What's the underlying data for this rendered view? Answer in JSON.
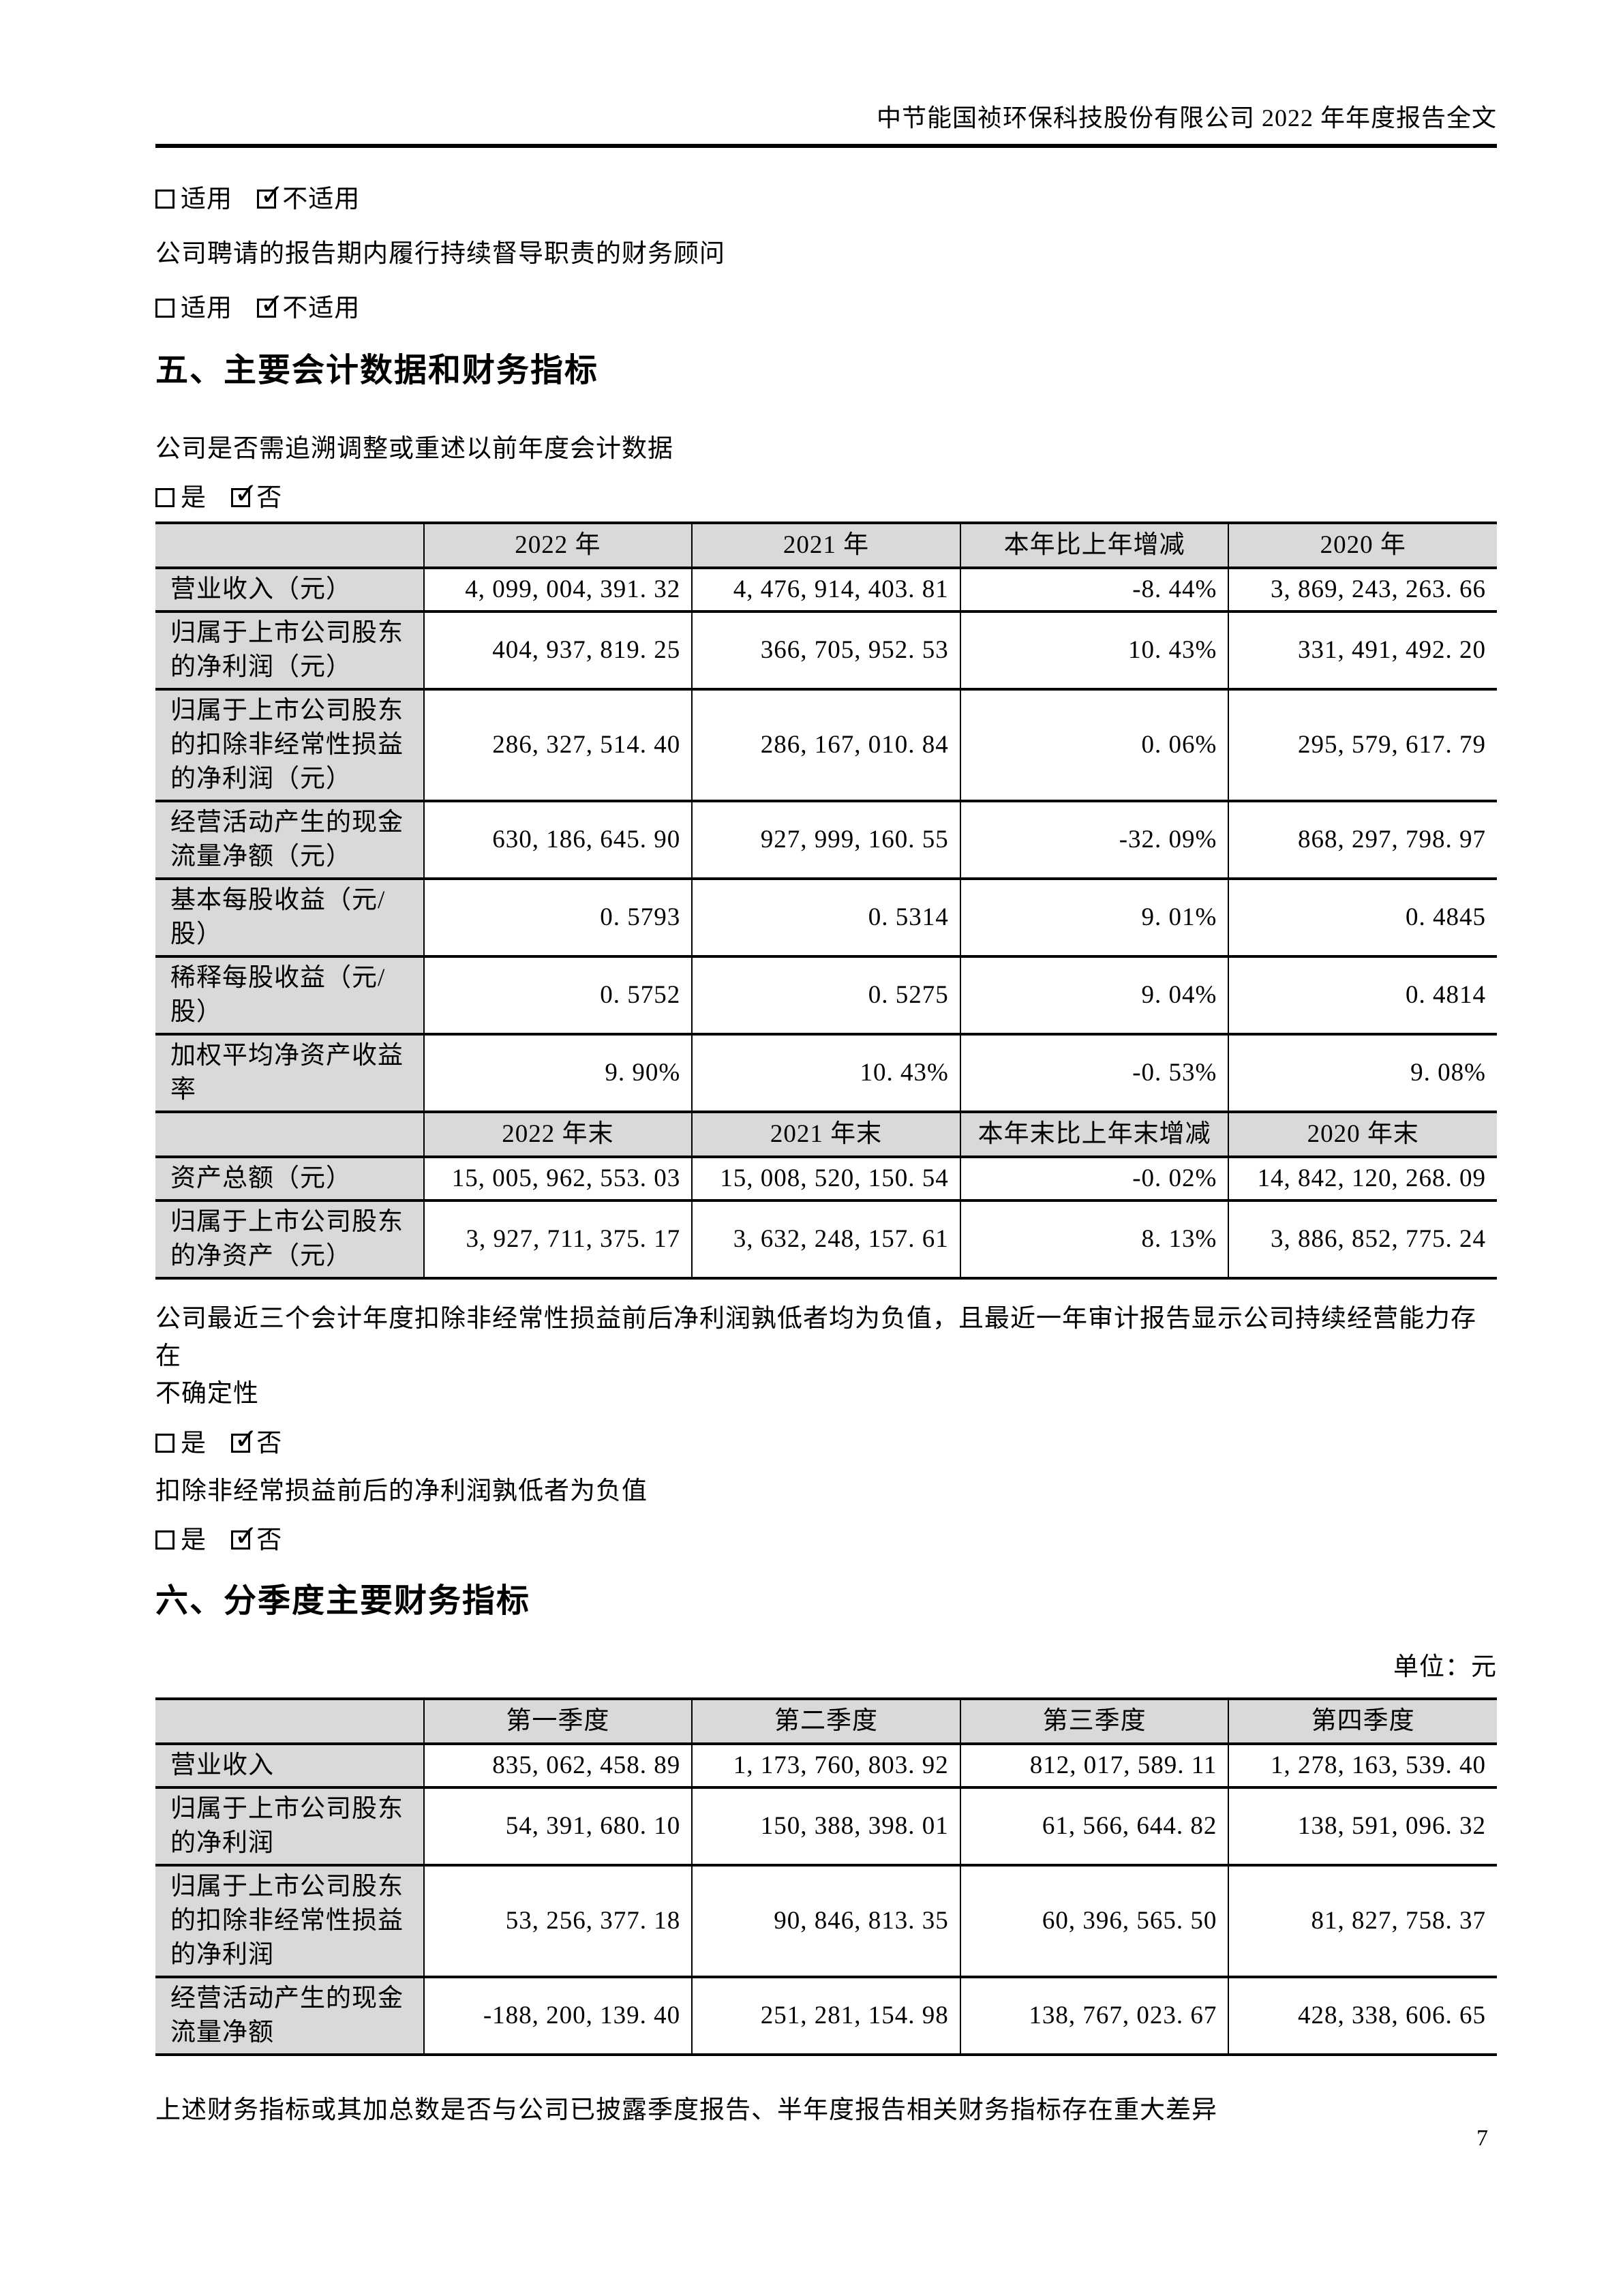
{
  "colors": {
    "table_shading": "#d9d9d9",
    "text": "#000000"
  },
  "header": {
    "title": "中节能国祯环保科技股份有限公司 2022 年年度报告全文"
  },
  "top": {
    "applicable1": {
      "option_unchecked": "适用",
      "option_checked": "不适用"
    },
    "advisor_text": "公司聘请的报告期内履行持续督导职责的财务顾问",
    "applicable2": {
      "option_unchecked": "适用",
      "option_checked": "不适用"
    }
  },
  "section5": {
    "heading": "五、主要会计数据和财务指标",
    "restate_question": "公司是否需追溯调整或重述以前年度会计数据",
    "yesno1": {
      "yes": "是",
      "no": "否"
    },
    "table1": {
      "columns1": [
        "",
        "2022 年",
        "2021 年",
        "本年比上年增减",
        "2020 年"
      ],
      "rows1": [
        {
          "label": "营业收入（元）",
          "v": [
            "4, 099, 004, 391. 32",
            "4, 476, 914, 403. 81",
            "-8. 44%",
            "3, 869, 243, 263. 66"
          ]
        },
        {
          "label": "归属于上市公司股东\n的净利润（元）",
          "v": [
            "404, 937, 819. 25",
            "366, 705, 952. 53",
            "10. 43%",
            "331, 491, 492. 20"
          ]
        },
        {
          "label": "归属于上市公司股东\n的扣除非经常性损益\n的净利润（元）",
          "v": [
            "286, 327, 514. 40",
            "286, 167, 010. 84",
            "0. 06%",
            "295, 579, 617. 79"
          ]
        },
        {
          "label": "经营活动产生的现金\n流量净额（元）",
          "v": [
            "630, 186, 645. 90",
            "927, 999, 160. 55",
            "-32. 09%",
            "868, 297, 798. 97"
          ]
        },
        {
          "label": "基本每股收益（元/\n股）",
          "v": [
            "0. 5793",
            "0. 5314",
            "9. 01%",
            "0. 4845"
          ]
        },
        {
          "label": "稀释每股收益（元/\n股）",
          "v": [
            "0. 5752",
            "0. 5275",
            "9. 04%",
            "0. 4814"
          ]
        },
        {
          "label": "加权平均净资产收益\n率",
          "v": [
            "9. 90%",
            "10. 43%",
            "-0. 53%",
            "9. 08%"
          ]
        }
      ],
      "columns2": [
        "",
        "2022 年末",
        "2021 年末",
        "本年末比上年末增减",
        "2020 年末"
      ],
      "rows2": [
        {
          "label": "资产总额（元）",
          "v": [
            "15, 005, 962, 553. 03",
            "15, 008, 520, 150. 54",
            "-0. 02%",
            "14, 842, 120, 268. 09"
          ]
        },
        {
          "label": "归属于上市公司股东\n的净资产（元）",
          "v": [
            "3, 927, 711, 375. 17",
            "3, 632, 248, 157. 61",
            "8. 13%",
            "3, 886, 852, 775. 24"
          ]
        }
      ]
    },
    "note1": "公司最近三个会计年度扣除非经常性损益前后净利润孰低者均为负值，且最近一年审计报告显示公司持续经营能力存在\n不确定性",
    "yesno2": {
      "yes": "是",
      "no": "否"
    },
    "note2": "扣除非经常损益前后的净利润孰低者为负值",
    "yesno3": {
      "yes": "是",
      "no": "否"
    }
  },
  "section6": {
    "heading": "六、分季度主要财务指标",
    "unit_note": "单位：元",
    "table2": {
      "columns": [
        "",
        "第一季度",
        "第二季度",
        "第三季度",
        "第四季度"
      ],
      "rows": [
        {
          "label": "营业收入",
          "v": [
            "835, 062, 458. 89",
            "1, 173, 760, 803. 92",
            "812, 017, 589. 11",
            "1, 278, 163, 539. 40"
          ]
        },
        {
          "label": "归属于上市公司股东\n的净利润",
          "v": [
            "54, 391, 680. 10",
            "150, 388, 398. 01",
            "61, 566, 644. 82",
            "138, 591, 096. 32"
          ]
        },
        {
          "label": "归属于上市公司股东\n的扣除非经常性损益\n的净利润",
          "v": [
            "53, 256, 377. 18",
            "90, 846, 813. 35",
            "60, 396, 565. 50",
            "81, 827, 758. 37"
          ]
        },
        {
          "label": "经营活动产生的现金\n流量净额",
          "v": [
            "-188, 200, 139. 40",
            "251, 281, 154. 98",
            "138, 767, 023. 67",
            "428, 338, 606. 65"
          ]
        }
      ]
    },
    "note": "上述财务指标或其加总数是否与公司已披露季度报告、半年度报告相关财务指标存在重大差异"
  },
  "footer": {
    "page_number": "7"
  }
}
